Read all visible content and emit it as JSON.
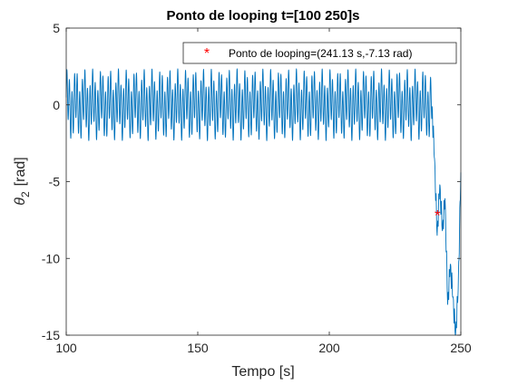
{
  "chart_data": {
    "type": "line",
    "title": "Ponto de looping t=[100 250]s",
    "xlabel": "Tempo [s]",
    "ylabel_symbol": "θ",
    "ylabel_subscript": "2",
    "ylabel_unit": "[rad]",
    "xlim": [
      100,
      250
    ],
    "ylim": [
      -15,
      5
    ],
    "xticks": [
      100,
      150,
      200,
      250
    ],
    "yticks": [
      5,
      0,
      -5,
      -10,
      -15
    ],
    "grid": false,
    "legend_position": "top-right",
    "series": [
      {
        "color": "#0072BD",
        "description": "oscillation about 0 with amplitude about 2.3 rad from t=100 to about t=239, then falls to about -15 rad with large swings until t=250",
        "x": [
          100,
          139,
          140,
          239,
          240,
          241,
          242,
          243,
          244,
          245,
          246,
          247,
          248,
          249,
          250
        ],
        "y": [
          0,
          0,
          0,
          0,
          -3.5,
          -8.5,
          -5.2,
          -8.2,
          -6.1,
          -13.0,
          -10.4,
          -12.5,
          -15.0,
          -12.0,
          -4.4
        ]
      },
      {
        "name": "Ponto de looping=(241.13 s,-7.13 rad)",
        "type": "scatter",
        "marker": "*",
        "color": "#FF0000",
        "x": [
          241.13
        ],
        "y": [
          -7.13
        ]
      }
    ]
  }
}
